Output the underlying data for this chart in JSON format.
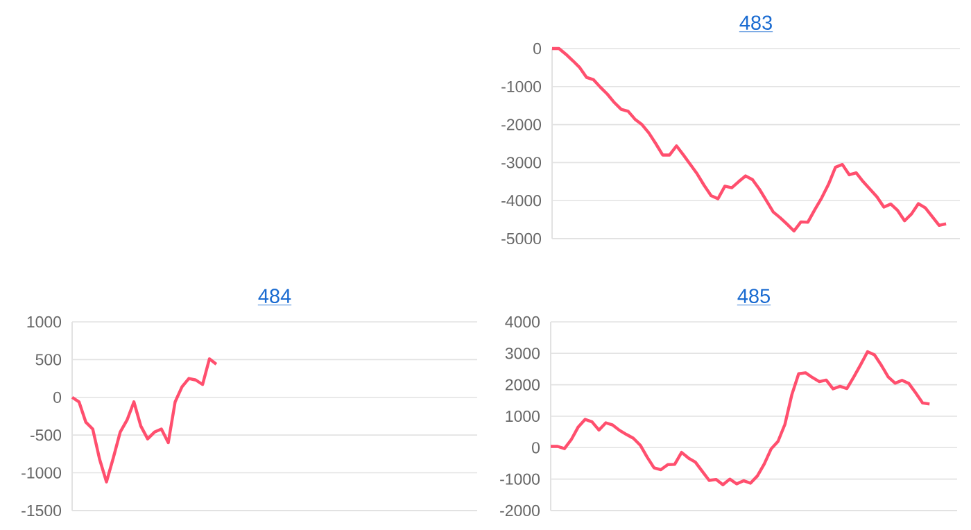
{
  "chart_data": [
    {
      "type": "line",
      "title": "483",
      "categories": [
        null,
        null,
        null,
        null,
        null,
        null,
        null,
        null,
        null,
        null,
        null,
        null,
        null,
        null,
        null,
        null,
        null,
        null,
        null,
        null,
        null,
        null,
        null,
        null,
        null,
        null,
        null,
        null,
        null,
        null,
        null,
        null,
        null,
        null,
        null,
        null,
        null,
        null,
        null,
        null,
        null,
        null,
        null,
        null,
        null,
        null,
        null,
        null,
        null,
        null,
        null,
        null,
        null,
        null,
        null,
        null,
        null,
        null,
        null,
        null
      ],
      "series": [
        {
          "color": "#ff4f6e",
          "values": [
            0,
            0,
            -150,
            -320,
            -500,
            -760,
            -820,
            -1020,
            -1200,
            -1420,
            -1600,
            -1650,
            -1860,
            -2000,
            -2220,
            -2500,
            -2800,
            -2800,
            -2560,
            -2800,
            -3050,
            -3300,
            -3600,
            -3870,
            -3950,
            -3620,
            -3660,
            -3500,
            -3350,
            -3450,
            -3700,
            -4000,
            -4300,
            -4450,
            -4620,
            -4800,
            -4560,
            -4570,
            -4240,
            -3930,
            -3570,
            -3120,
            -3050,
            -3320,
            -3270,
            -3500,
            -3700,
            -3900,
            -4170,
            -4090,
            -4260,
            -4530,
            -4350,
            -4080,
            -4190,
            -4420,
            -4650,
            -4610,
            null,
            null
          ]
        }
      ],
      "ylim": [
        -5000,
        0
      ],
      "yticks": [
        -5000,
        -4000,
        -3000,
        -2000,
        -1000,
        0
      ],
      "grid": "y",
      "tick_labels": "y"
    },
    {
      "type": "line",
      "title": "484",
      "categories": [
        null,
        null,
        null,
        null,
        null,
        null,
        null,
        null,
        null,
        null,
        null,
        null,
        null,
        null,
        null,
        null,
        null,
        null,
        null,
        null,
        null,
        null,
        null,
        null,
        null,
        null,
        null,
        null,
        null,
        null,
        null,
        null,
        null,
        null,
        null,
        null,
        null,
        null,
        null,
        null,
        null,
        null,
        null,
        null,
        null,
        null,
        null,
        null,
        null,
        null,
        null,
        null,
        null,
        null,
        null,
        null,
        null,
        null,
        null,
        null
      ],
      "series": [
        {
          "color": "#ff4f6e",
          "values": [
            0,
            -60,
            -330,
            -420,
            -820,
            -1120,
            -800,
            -460,
            -300,
            -60,
            -380,
            -550,
            -460,
            -420,
            -600,
            -60,
            140,
            250,
            230,
            170,
            510,
            440,
            null,
            null,
            null,
            null,
            null,
            null,
            null,
            null,
            null,
            null,
            null,
            null,
            null,
            null,
            null,
            null,
            null,
            null,
            null,
            null,
            null,
            null,
            null,
            null,
            null,
            null,
            null,
            null,
            null,
            null,
            null,
            null,
            null,
            null,
            null,
            null,
            null,
            null
          ]
        }
      ],
      "ylim": [
        -1500,
        1000
      ],
      "yticks": [
        -1500,
        -1000,
        -500,
        0,
        500,
        1000
      ],
      "grid": "y",
      "tick_labels": "y"
    },
    {
      "type": "line",
      "title": "485",
      "categories": [
        null,
        null,
        null,
        null,
        null,
        null,
        null,
        null,
        null,
        null,
        null,
        null,
        null,
        null,
        null,
        null,
        null,
        null,
        null,
        null,
        null,
        null,
        null,
        null,
        null,
        null,
        null,
        null,
        null,
        null,
        null,
        null,
        null,
        null,
        null,
        null,
        null,
        null,
        null,
        null,
        null,
        null,
        null,
        null,
        null,
        null,
        null,
        null,
        null,
        null,
        null,
        null,
        null,
        null,
        null,
        null,
        null,
        null,
        null,
        null
      ],
      "series": [
        {
          "color": "#ff4f6e",
          "values": [
            40,
            40,
            -30,
            260,
            660,
            900,
            820,
            560,
            790,
            720,
            550,
            420,
            300,
            80,
            -300,
            -640,
            -700,
            -540,
            -530,
            -150,
            -330,
            -460,
            -750,
            -1040,
            -1010,
            -1180,
            -1000,
            -1150,
            -1050,
            -1130,
            -900,
            -520,
            -40,
            200,
            740,
            1680,
            2350,
            2380,
            2230,
            2100,
            2150,
            1870,
            1950,
            1880,
            2250,
            2640,
            3050,
            2950,
            2620,
            2250,
            2050,
            2140,
            2040,
            1740,
            1420,
            1390,
            null,
            null,
            null,
            null
          ]
        }
      ],
      "ylim": [
        -2000,
        4000
      ],
      "yticks": [
        -2000,
        -1000,
        0,
        1000,
        2000,
        3000,
        4000
      ],
      "grid": "y",
      "tick_labels": "y"
    }
  ]
}
